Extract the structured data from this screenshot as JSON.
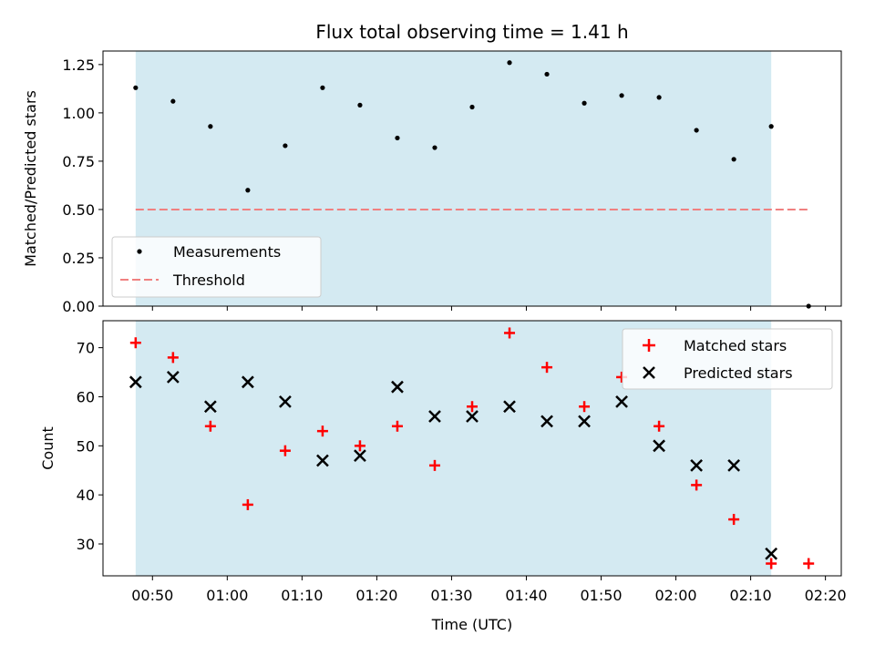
{
  "chart_data": [
    {
      "type": "scatter",
      "title": "Flux total observing time = 1.41 h",
      "ylabel": "Matched/Predicted stars",
      "ylim": [
        0,
        1.32
      ],
      "yticks": [
        0.0,
        0.25,
        0.5,
        0.75,
        1.0,
        1.25
      ],
      "yticklabels": [
        "0.00",
        "0.25",
        "0.50",
        "0.75",
        "1.00",
        "1.25"
      ],
      "x": [
        "00:47:45",
        "00:52:45",
        "00:57:45",
        "01:02:45",
        "01:07:45",
        "01:12:45",
        "01:17:45",
        "01:22:45",
        "01:27:45",
        "01:32:45",
        "01:37:45",
        "01:42:45",
        "01:47:45",
        "01:52:45",
        "01:57:45",
        "02:02:45",
        "02:07:45",
        "02:12:45",
        "02:17:45"
      ],
      "series": [
        {
          "name": "Measurements",
          "values": [
            1.13,
            1.06,
            0.93,
            0.6,
            0.83,
            1.13,
            1.04,
            0.87,
            0.82,
            1.03,
            1.26,
            1.2,
            1.05,
            1.09,
            1.08,
            0.91,
            0.76,
            0.93,
            0.0
          ],
          "color": "#000000"
        }
      ],
      "threshold": {
        "name": "Threshold",
        "value": 0.5,
        "x_start": "00:47:45",
        "x_end": "02:17:45",
        "color": "#f08080"
      },
      "shaded_span": {
        "x_start": "00:47:45",
        "x_end": "02:12:45",
        "color": "#add8e6"
      },
      "legend": "lower-left"
    },
    {
      "type": "scatter",
      "xlabel": "Time (UTC)",
      "ylabel": "Count",
      "ylim": [
        23.5,
        75.5
      ],
      "yticks": [
        30,
        40,
        50,
        60,
        70
      ],
      "yticklabels": [
        "30",
        "40",
        "50",
        "60",
        "70"
      ],
      "xticks": [
        "00:50",
        "01:00",
        "01:10",
        "01:20",
        "01:30",
        "01:40",
        "01:50",
        "02:00",
        "02:10",
        "02:20"
      ],
      "x": [
        "00:47:45",
        "00:52:45",
        "00:57:45",
        "01:02:45",
        "01:07:45",
        "01:12:45",
        "01:17:45",
        "01:22:45",
        "01:27:45",
        "01:32:45",
        "01:37:45",
        "01:42:45",
        "01:47:45",
        "01:52:45",
        "01:57:45",
        "02:02:45",
        "02:07:45",
        "02:12:45",
        "02:17:45"
      ],
      "series": [
        {
          "name": "Matched stars",
          "marker": "+",
          "color": "#ff0000",
          "values": [
            71,
            68,
            54,
            38,
            49,
            53,
            50,
            54,
            46,
            58,
            73,
            66,
            58,
            64,
            54,
            42,
            35,
            26,
            26
          ]
        },
        {
          "name": "Predicted stars",
          "marker": "x",
          "color": "#000000",
          "values": [
            63,
            64,
            58,
            63,
            59,
            47,
            48,
            62,
            56,
            56,
            58,
            55,
            55,
            59,
            50,
            46,
            46,
            28,
            null
          ]
        }
      ],
      "shaded_span": {
        "x_start": "00:47:45",
        "x_end": "02:12:45",
        "color": "#add8e6"
      },
      "legend": "upper-right"
    }
  ]
}
